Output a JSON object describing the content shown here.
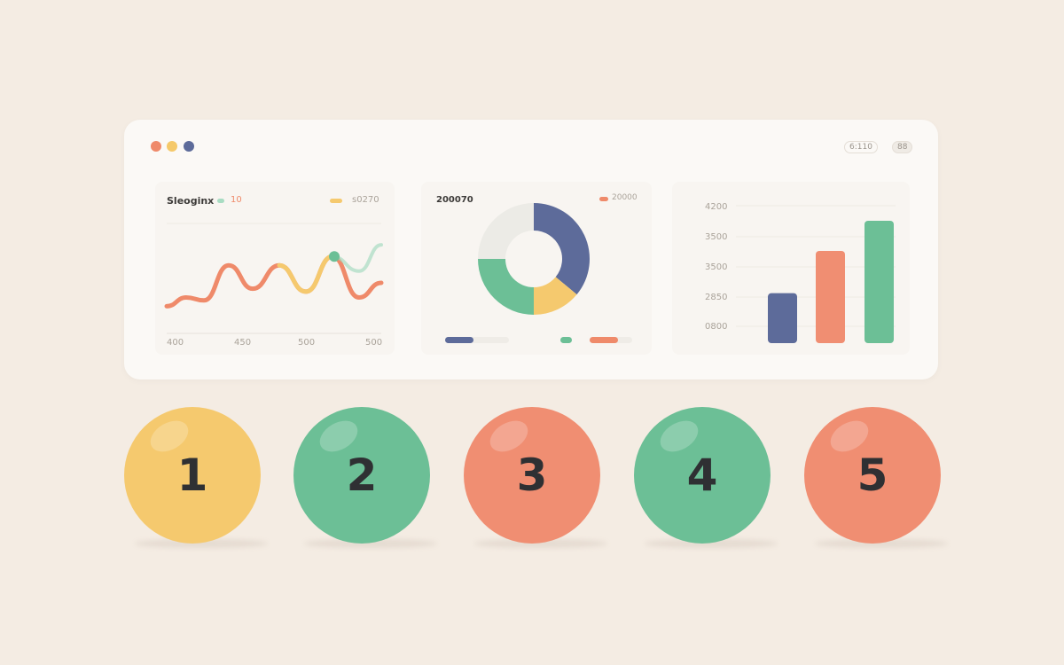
{
  "window": {
    "dots": [
      "#ef8a6a",
      "#f5c96a",
      "#5d6b9a"
    ],
    "header_pills": [
      "6:110",
      "88"
    ]
  },
  "line_panel": {
    "title": "Sleoginx",
    "legend_left": "10",
    "legend_right": "s0270",
    "x_ticks": [
      "400",
      "450",
      "500",
      "500"
    ]
  },
  "donut_panel": {
    "title": "200070",
    "legend": "20000"
  },
  "bar_panel": {
    "y_ticks": [
      "4200",
      "3500",
      "3500",
      "2850",
      "0800"
    ]
  },
  "chart_data": [
    {
      "type": "line",
      "title": "Sleoginx",
      "x_ticks": [
        "400",
        "450",
        "500",
        "500"
      ],
      "series": [
        {
          "color": "#ef8a6a",
          "values": [
            2.2,
            2.5,
            2.4,
            3.6,
            2.8,
            3.6,
            2.7,
            3.9,
            2.5,
            3.0
          ]
        },
        {
          "color": "#a8dcc2",
          "values": [
            null,
            null,
            null,
            null,
            null,
            null,
            null,
            3.9,
            3.4,
            4.3
          ]
        }
      ],
      "grid": true
    },
    {
      "type": "pie",
      "donut": true,
      "title": "200070",
      "slices": [
        {
          "color": "#5d6b9a",
          "value": 36
        },
        {
          "color": "#f5c96e",
          "value": 14
        },
        {
          "color": "#6cbf96",
          "value": 25
        },
        {
          "color": "#ecebe6",
          "value": 25
        }
      ]
    },
    {
      "type": "bar",
      "y_ticks": [
        "4200",
        "3500",
        "3500",
        "2850",
        "0800"
      ],
      "values": [
        1.1,
        2.5,
        3.5
      ],
      "colors": [
        "#5d6b9a",
        "#f08e72",
        "#6cbf96"
      ],
      "grid": true
    }
  ],
  "steps": [
    {
      "label": "1",
      "color": "#f5c96e"
    },
    {
      "label": "2",
      "color": "#6cbf96"
    },
    {
      "label": "3",
      "color": "#f08e72"
    },
    {
      "label": "4",
      "color": "#6cbf96"
    },
    {
      "label": "5",
      "color": "#f08e72"
    }
  ]
}
